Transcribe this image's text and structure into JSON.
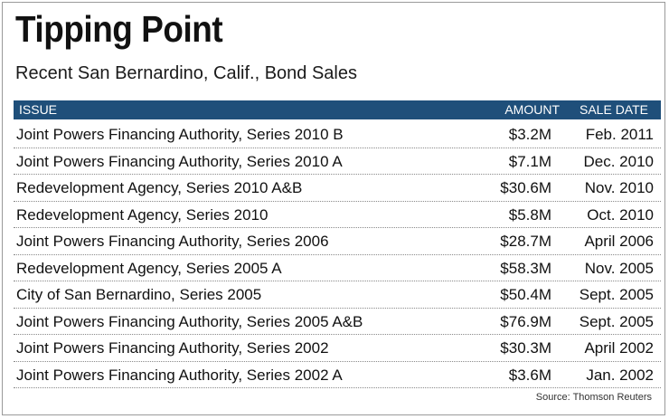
{
  "title": "Tipping Point",
  "subtitle": "Recent San Bernardino, Calif., Bond Sales",
  "source": "Source: Thomson Reuters",
  "colors": {
    "header_bg": "#1f4f7a",
    "header_text": "#ffffff"
  },
  "chart_data": {
    "type": "table",
    "title": "Tipping Point",
    "subtitle": "Recent San Bernardino, Calif., Bond Sales",
    "columns": [
      "ISSUE",
      "AMOUNT",
      "SALE DATE"
    ],
    "rows": [
      [
        "Joint Powers Financing Authority, Series 2010 B",
        "$3.2M",
        "Feb. 2011"
      ],
      [
        "Joint Powers Financing Authority, Series 2010 A",
        "$7.1M",
        "Dec. 2010"
      ],
      [
        "Redevelopment Agency, Series 2010 A&B",
        "$30.6M",
        "Nov. 2010"
      ],
      [
        "Redevelopment Agency, Series 2010",
        "$5.8M",
        "Oct. 2010"
      ],
      [
        "Joint Powers Financing Authority, Series 2006",
        "$28.7M",
        "April 2006"
      ],
      [
        "Redevelopment Agency, Series 2005 A",
        "$58.3M",
        "Nov. 2005"
      ],
      [
        "City of San Bernardino, Series 2005",
        "$50.4M",
        "Sept. 2005"
      ],
      [
        "Joint Powers Financing Authority, Series 2005 A&B",
        "$76.9M",
        "Sept. 2005"
      ],
      [
        "Joint Powers Financing Authority, Series 2002",
        "$30.3M",
        "April 2002"
      ],
      [
        "Joint Powers Financing Authority, Series 2002 A",
        "$3.6M",
        "Jan. 2002"
      ]
    ],
    "source": "Source: Thomson Reuters"
  }
}
